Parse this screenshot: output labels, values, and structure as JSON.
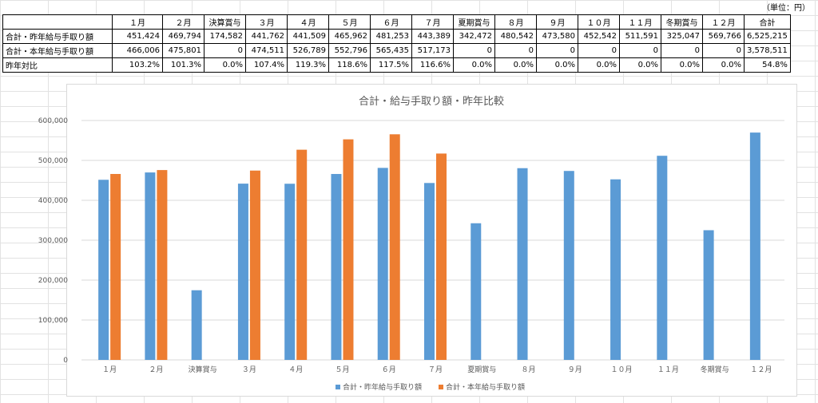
{
  "unit_label": "（単位：円）",
  "table": {
    "columns": [
      "１月",
      "２月",
      "決算賞与",
      "３月",
      "４月",
      "５月",
      "６月",
      "７月",
      "夏期賞与",
      "８月",
      "９月",
      "１０月",
      "１１月",
      "冬期賞与",
      "１２月",
      "合計"
    ],
    "rows": [
      {
        "label": "合計・昨年給与手取り額",
        "cells": [
          "451,424",
          "469,794",
          "174,582",
          "441,762",
          "441,509",
          "465,962",
          "481,253",
          "443,389",
          "342,472",
          "480,542",
          "473,580",
          "452,542",
          "511,591",
          "325,047",
          "569,766",
          "6,525,215"
        ]
      },
      {
        "label": "合計・本年給与手取り額",
        "cells": [
          "466,006",
          "475,801",
          "0",
          "474,511",
          "526,789",
          "552,796",
          "565,435",
          "517,173",
          "0",
          "0",
          "0",
          "0",
          "0",
          "0",
          "0",
          "3,578,511"
        ]
      },
      {
        "label": "昨年対比",
        "cells": [
          "103.2%",
          "101.3%",
          "0.0%",
          "107.4%",
          "119.3%",
          "118.6%",
          "117.5%",
          "116.6%",
          "0.0%",
          "0.0%",
          "0.0%",
          "0.0%",
          "0.0%",
          "0.0%",
          "0.0%",
          "54.8%"
        ]
      }
    ]
  },
  "chart_data": {
    "type": "bar",
    "title": "合計・給与手取り額・昨年比較",
    "categories": [
      "１月",
      "２月",
      "決算賞与",
      "３月",
      "４月",
      "５月",
      "６月",
      "７月",
      "夏期賞与",
      "８月",
      "９月",
      "１０月",
      "１１月",
      "冬期賞与",
      "１２月"
    ],
    "series": [
      {
        "name": "合計・昨年給与手取り額",
        "color": "#5b9bd5",
        "values": [
          451424,
          469794,
          174582,
          441762,
          441509,
          465962,
          481253,
          443389,
          342472,
          480542,
          473580,
          452542,
          511591,
          325047,
          569766
        ]
      },
      {
        "name": "合計・本年給与手取り額",
        "color": "#ed7d31",
        "values": [
          466006,
          475801,
          0,
          474511,
          526789,
          552796,
          565435,
          517173,
          0,
          0,
          0,
          0,
          0,
          0,
          0
        ]
      }
    ],
    "yticks": [
      "0",
      "100,000",
      "200,000",
      "300,000",
      "400,000",
      "500,000",
      "600,000"
    ],
    "ylim": [
      0,
      600000
    ],
    "grid": true,
    "legend_position": "bottom"
  }
}
